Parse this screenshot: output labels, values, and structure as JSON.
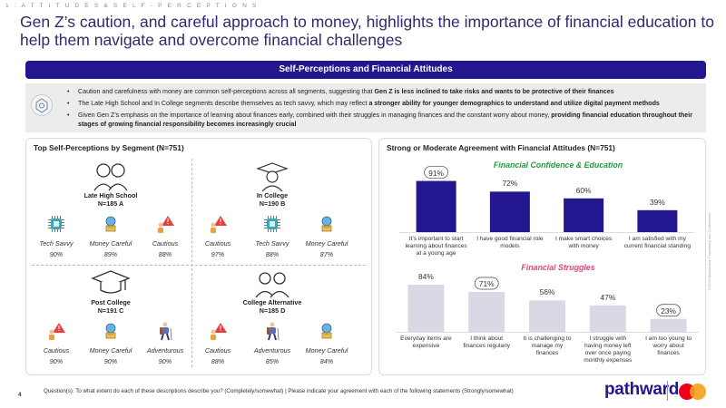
{
  "header": {
    "section_tag": "1 : A T T I T U D E S  &  S E L F - P E R C E P T I O N S",
    "title": "Gen Z’s caution, and careful approach to money, highlights the importance of financial education to help them navigate and overcome financial challenges"
  },
  "banner": {
    "label": "Self-Perceptions and Financial Attitudes"
  },
  "bullets": [
    {
      "plain": "Caution and carefulness with money are common self-perceptions across all segments, suggesting that ",
      "bold": "Gen Z is less inclined to take risks and wants to be protective of their finances",
      "tail": ""
    },
    {
      "plain": "The Late High School and In College segments describe themselves as tech savvy, which may reflect ",
      "bold": "a stronger ability for younger demographics to understand and utilize digital payment methods",
      "tail": ""
    },
    {
      "plain": "Given Gen Z’s emphasis on the importance of learning about finances early, combined with their struggles in managing finances and the constant worry about money, ",
      "bold": "providing financial education throughout their stages of growing financial responsibility becomes increasingly crucial",
      "tail": ""
    }
  ],
  "left_panel": {
    "title": "Top Self-Perceptions by Segment (N=751)",
    "segments": [
      {
        "name": "Late High School",
        "n": "N=185 A",
        "traits": [
          {
            "label": "Tech Savvy",
            "pct": "90%",
            "icon": "chip-icon"
          },
          {
            "label": "Money Careful",
            "pct": "89%",
            "icon": "piggy-bank-icon"
          },
          {
            "label": "Cautious",
            "pct": "88%",
            "icon": "warning-person-icon"
          }
        ]
      },
      {
        "name": "In College",
        "n": "N=190 B",
        "traits": [
          {
            "label": "Cautious",
            "pct": "97%",
            "icon": "warning-person-icon"
          },
          {
            "label": "Tech Savvy",
            "pct": "88%",
            "icon": "chip-icon"
          },
          {
            "label": "Money Careful",
            "pct": "87%",
            "icon": "piggy-bank-icon"
          }
        ]
      },
      {
        "name": "Post College",
        "n": "N=191 C",
        "traits": [
          {
            "label": "Cautious",
            "pct": "90%",
            "icon": "warning-person-icon"
          },
          {
            "label": "Money Careful",
            "pct": "90%",
            "icon": "piggy-bank-icon"
          },
          {
            "label": "Adventurous",
            "pct": "90%",
            "icon": "hiker-icon"
          }
        ]
      },
      {
        "name": "College Alternative",
        "n": "N=185 D",
        "traits": [
          {
            "label": "Cautious",
            "pct": "88%",
            "icon": "warning-person-icon"
          },
          {
            "label": "Adventurous",
            "pct": "85%",
            "icon": "hiker-icon"
          },
          {
            "label": "Money Careful",
            "pct": "84%",
            "icon": "piggy-bank-icon"
          }
        ]
      }
    ]
  },
  "chart_data": [
    {
      "type": "bar",
      "title": "Strong or Moderate Agreement with Financial Attitudes (N=751)",
      "subtitle": "Financial Confidence & Education",
      "categories": [
        "It’s important to start learning about finances at a young age",
        "I have good financial role models",
        "I make smart choices with money",
        "I am satisfied with my current financial standing"
      ],
      "values": [
        91,
        72,
        60,
        39
      ],
      "value_labels": [
        "91%",
        "72%",
        "60%",
        "39%"
      ],
      "highlighted": [
        0
      ],
      "color": "#23178f",
      "subtitle_color": "#1f9a3a",
      "ylim": [
        0,
        100
      ]
    },
    {
      "type": "bar",
      "title": "",
      "subtitle": "Financial Struggles",
      "categories": [
        "Everyday items are expensive",
        "I think about finances regularly",
        "It is challenging to manage my finances",
        "I struggle with having money left over once paying monthly expenses",
        "I am too young to worry about finances"
      ],
      "values": [
        84,
        71,
        56,
        47,
        23
      ],
      "value_labels": [
        "84%",
        "71%",
        "56%",
        "47%",
        "23%"
      ],
      "highlighted": [
        1,
        4
      ],
      "color": "#d9d9e6",
      "subtitle_color": "#e0457b",
      "ylim": [
        0,
        100
      ]
    }
  ],
  "footer": {
    "page": "4",
    "question": "Question(s): To what extent do each of these descriptions describe you? (Completely/somewhat) | Please indicate your agreement with each of the following statements (Strongly/somewhat)",
    "side_note": "©2024 Mastercard. Proprietary and Confidential",
    "logo": "pathward",
    "colors": {
      "accent": "#23178f",
      "mc_red": "#eb001b",
      "mc_yellow": "#f79e1b"
    }
  }
}
